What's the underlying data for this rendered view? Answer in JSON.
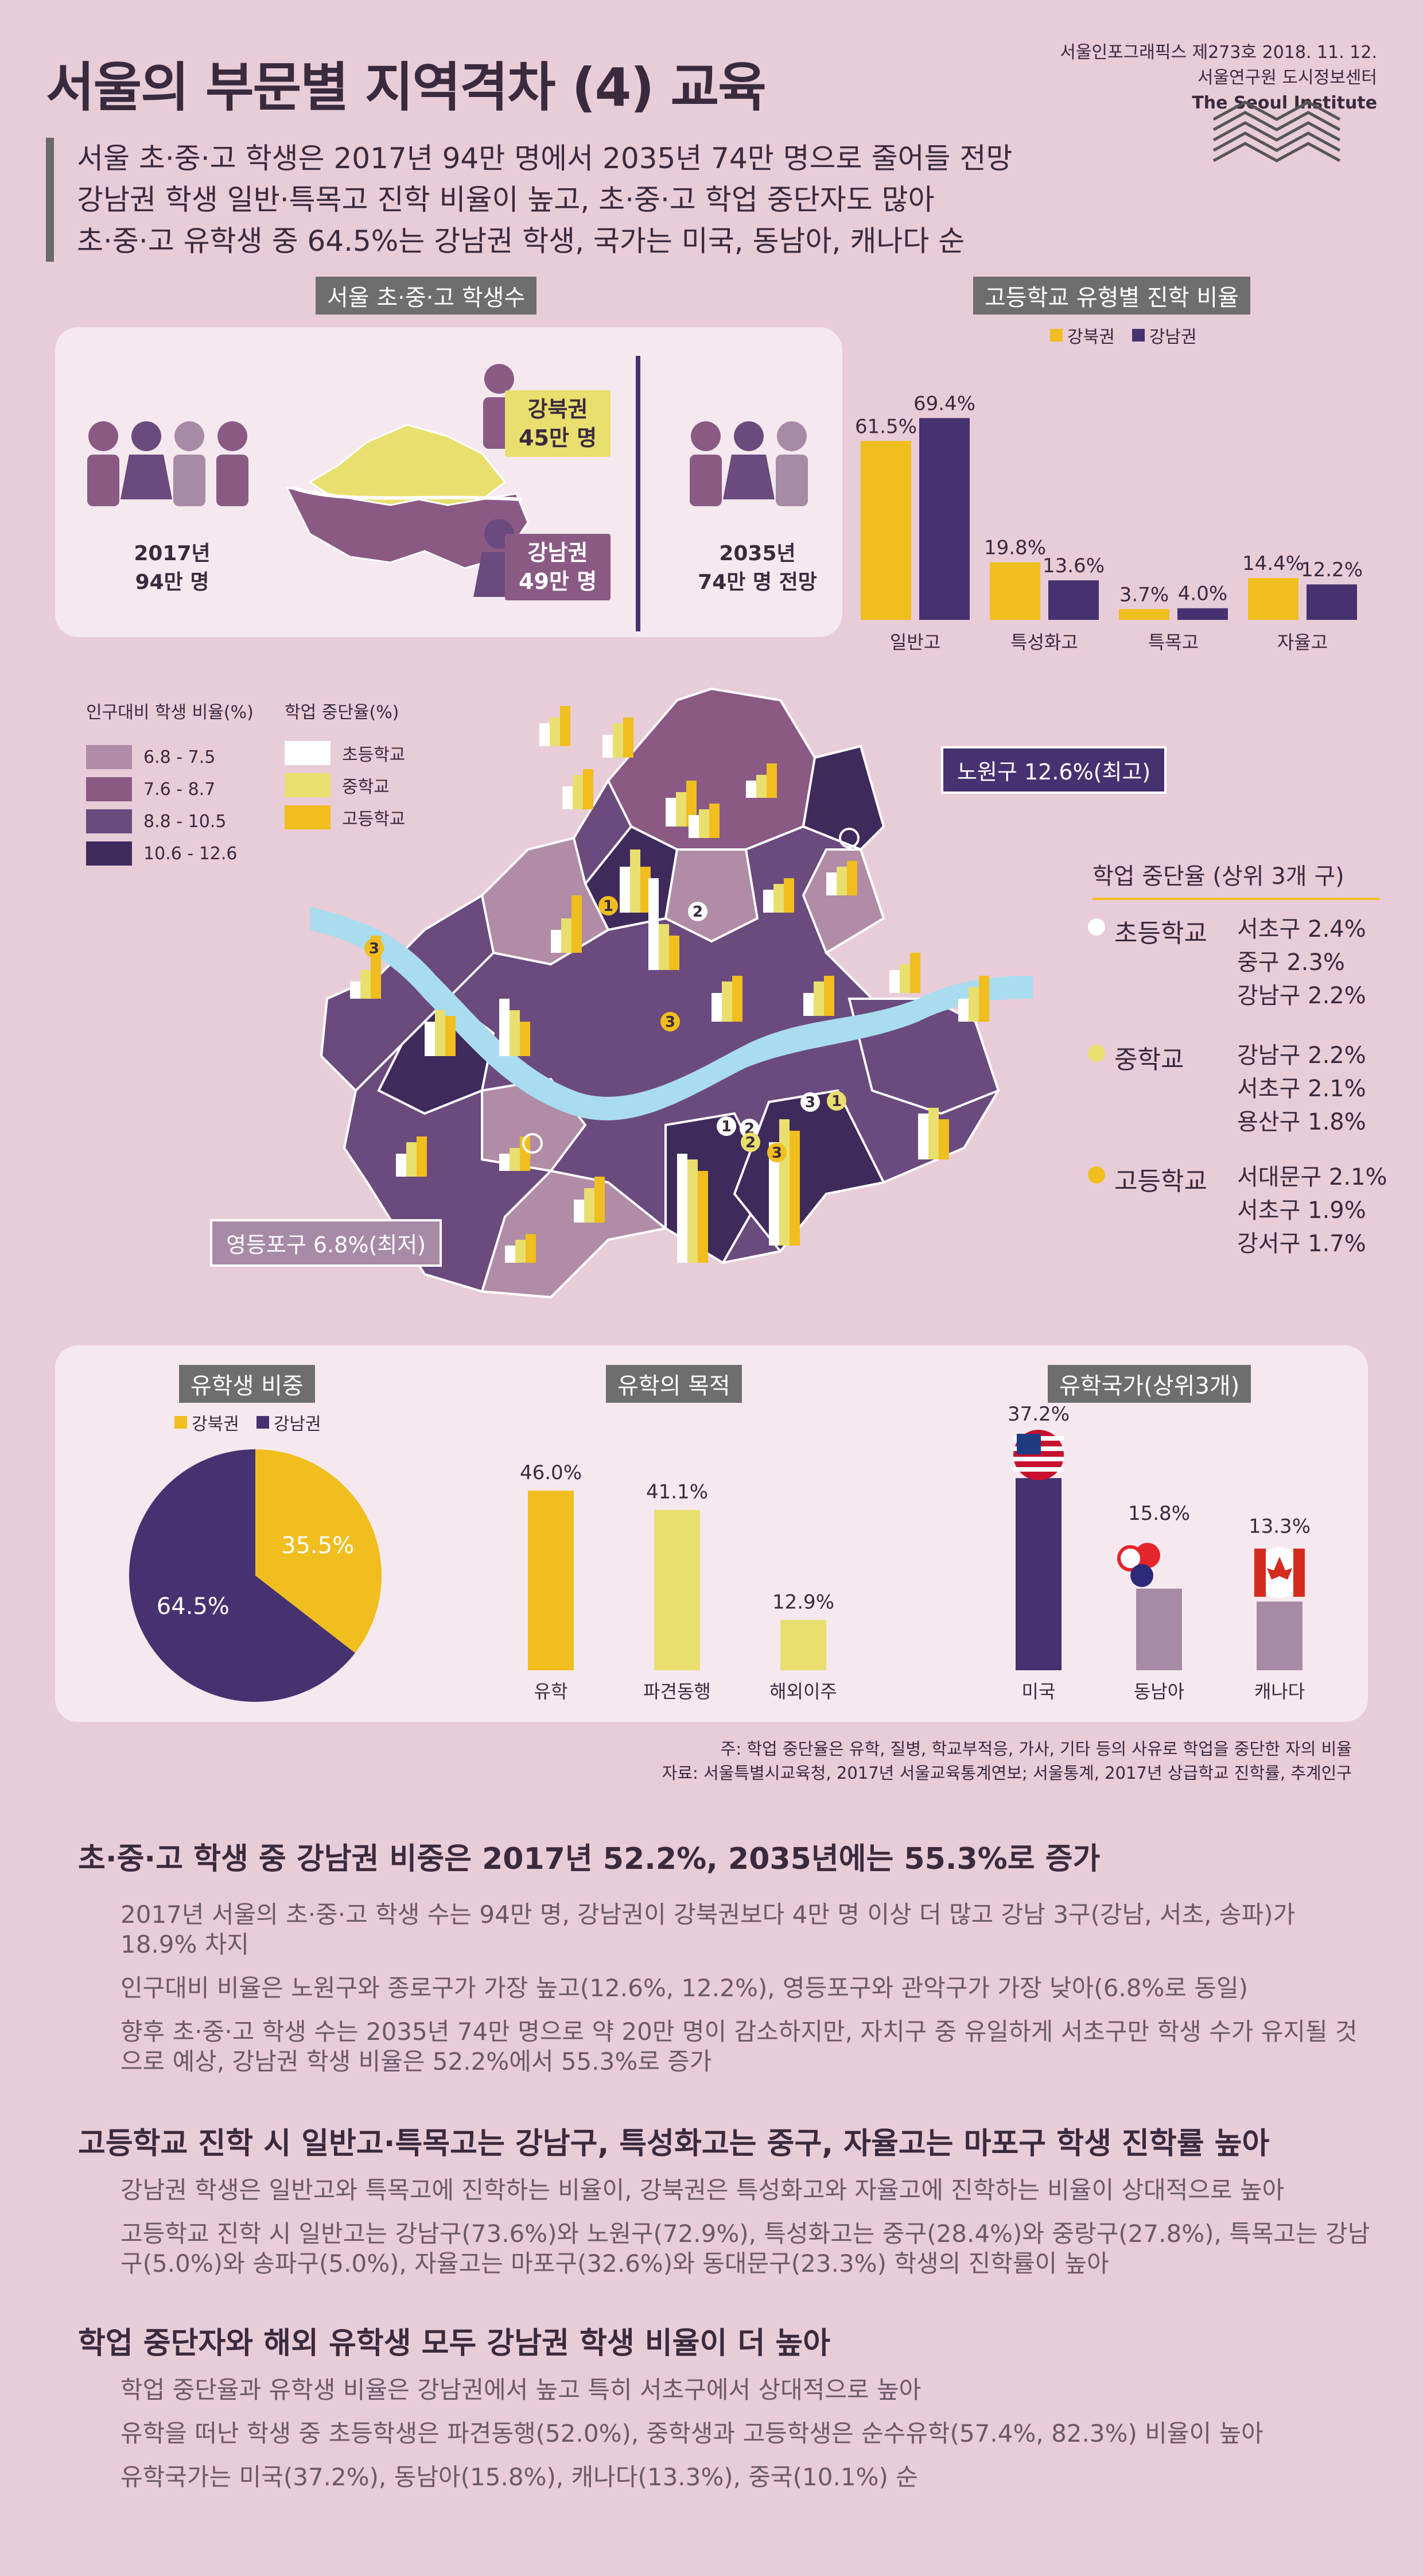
{
  "header": {
    "title": "서울의 부문별 지역격차 (4) 교육",
    "issue_line": "서울인포그래픽스 제273호 2018. 11. 12.",
    "org_line": "서울연구원 도시정보센터",
    "org_en": "The Seoul Institute"
  },
  "summary": [
    "서울 초·중·고 학생은 2017년 94만 명에서 2035년 74만 명으로 줄어들 전망",
    "강남권 학생 일반·특목고 진학 비율이 높고, 초·중·고 학업 중단자도 많아",
    "초·중·고 유학생 중 64.5%는 강남권 학생, 국가는 미국, 동남아, 캐나다 순"
  ],
  "students": {
    "label": "서울 초·중·고 학생수",
    "y2017": "2017년",
    "y2017_value": "94만 명",
    "gangbuk_name": "강북권",
    "gangbuk_value": "45만 명",
    "gangnam_name": "강남권",
    "gangnam_value": "49만 명",
    "y2035": "2035년",
    "y2035_value": "74만 명 전망"
  },
  "map": {
    "legend_ratio_title": "인구대비 학생 비율(%)",
    "legend_ratio": [
      {
        "label": "6.8 - 7.5",
        "color": "#b08ca6"
      },
      {
        "label": "7.6 - 8.7",
        "color": "#8a5a85"
      },
      {
        "label": "8.8 - 10.5",
        "color": "#6b4a7e"
      },
      {
        "label": "10.6 - 12.6",
        "color": "#3f2a5c"
      }
    ],
    "legend_dropout_title": "학업 중단율(%)",
    "legend_dropout": [
      {
        "label": "초등학교",
        "color": "#ffffff"
      },
      {
        "label": "중학교",
        "color": "#e8df6e"
      },
      {
        "label": "고등학교",
        "color": "#f0be1e"
      }
    ],
    "highest": "노원구 12.6%(최고)",
    "lowest": "영등포구 6.8%(최저)",
    "markers": [
      "1",
      "2",
      "3",
      "3",
      "3",
      "1",
      "2",
      "2",
      "3",
      "1"
    ]
  },
  "top3": {
    "title": "학업 중단율 (상위 3개 구)",
    "groups": [
      {
        "name": "초등학교",
        "color": "#ffffff",
        "items": [
          "서초구 2.4%",
          "중구 2.3%",
          "강남구 2.2%"
        ]
      },
      {
        "name": "중학교",
        "color": "#e8df6e",
        "items": [
          "강남구 2.2%",
          "서초구 2.1%",
          "용산구 1.8%"
        ]
      },
      {
        "name": "고등학교",
        "color": "#f0be1e",
        "items": [
          "서대문구 2.1%",
          "서초구 1.9%",
          "강서구 1.7%"
        ]
      }
    ]
  },
  "chart_data": [
    {
      "type": "bar",
      "title": "고등학교 유형별 진학 비율",
      "categories": [
        "일반고",
        "특성화고",
        "특목고",
        "자율고"
      ],
      "series": [
        {
          "name": "강북권",
          "color": "#f0be1e",
          "values": [
            61.5,
            19.8,
            3.7,
            14.4
          ],
          "labels": [
            "61.5%",
            "19.8%",
            "3.7%",
            "14.4%"
          ]
        },
        {
          "name": "강남권",
          "color": "#463270",
          "values": [
            69.4,
            13.6,
            4.0,
            12.2
          ],
          "labels": [
            "69.4%",
            "13.6%",
            "4.0%",
            "12.2%"
          ]
        }
      ],
      "ylim": [
        0,
        75
      ]
    },
    {
      "type": "pie",
      "title": "유학생 비중",
      "categories": [
        "강북권",
        "강남권"
      ],
      "values": [
        35.5,
        64.5
      ],
      "labels": [
        "35.5%",
        "64.5%"
      ],
      "colors": [
        "#f0be1e",
        "#463270"
      ]
    },
    {
      "type": "bar",
      "title": "유학의 목적",
      "categories": [
        "유학",
        "파견동행",
        "해외이주"
      ],
      "values": [
        46.0,
        41.1,
        12.9
      ],
      "labels": [
        "46.0%",
        "41.1%",
        "12.9%"
      ],
      "colors": [
        "#f0be1e",
        "#e8df6e",
        "#e8df6e"
      ],
      "ylim": [
        0,
        50
      ]
    },
    {
      "type": "bar",
      "title": "유학국가(상위3개)",
      "categories": [
        "미국",
        "동남아",
        "캐나다"
      ],
      "values": [
        37.2,
        15.8,
        13.3
      ],
      "labels": [
        "37.2%",
        "15.8%",
        "13.3%"
      ],
      "colors": [
        "#463270",
        "#a88aa6",
        "#a88aa6"
      ],
      "ylim": [
        0,
        40
      ]
    }
  ],
  "note": "주: 학업 중단율은 유학, 질병, 학교부적응, 가사, 기타 등의 사유로 학업을 중단한 자의 비율",
  "source": "자료: 서울특별시교육청, 2017년 서울교육통계연보; 서울통계, 2017년 상급학교 진학률, 추계인구",
  "sections": [
    {
      "title": "초·중·고 학생 중 강남권 비중은 2017년 52.2%, 2035년에는 55.3%로 증가",
      "paras": [
        "2017년 서울의 초·중·고 학생 수는 94만 명, 강남권이 강북권보다 4만 명 이상 더 많고 강남 3구(강남, 서초, 송파)가 18.9% 차지",
        "인구대비 비율은 노원구와 종로구가 가장 높고(12.6%, 12.2%), 영등포구와 관악구가 가장 낮아(6.8%로 동일)",
        "향후 초·중·고 학생 수는 2035년 74만 명으로 약 20만 명이 감소하지만, 자치구 중 유일하게 서초구만 학생 수가 유지될 것으로 예상, 강남권 학생 비율은 52.2%에서 55.3%로 증가"
      ]
    },
    {
      "title": "고등학교 진학 시 일반고·특목고는 강남구, 특성화고는 중구, 자율고는 마포구 학생 진학률 높아",
      "paras": [
        "강남권 학생은 일반고와 특목고에 진학하는 비율이, 강북권은 특성화고와 자율고에 진학하는 비율이 상대적으로 높아",
        "고등학교 진학 시 일반고는 강남구(73.6%)와 노원구(72.9%), 특성화고는 중구(28.4%)와 중랑구(27.8%), 특목고는 강남구(5.0%)와 송파구(5.0%), 자율고는 마포구(32.6%)와 동대문구(23.3%) 학생의 진학률이 높아"
      ]
    },
    {
      "title": "학업 중단자와 해외 유학생 모두 강남권 학생 비율이 더 높아",
      "paras": [
        "학업 중단율과 유학생 비율은 강남권에서 높고 특히 서초구에서 상대적으로 높아",
        "유학을 떠난 학생 중 초등학생은 파견동행(52.0%), 중학생과 고등학생은 순수유학(57.4%, 82.3%) 비율이 높아",
        "유학국가는 미국(37.2%), 동남아(15.8%), 캐나다(13.3%), 중국(10.1%) 순"
      ]
    }
  ]
}
